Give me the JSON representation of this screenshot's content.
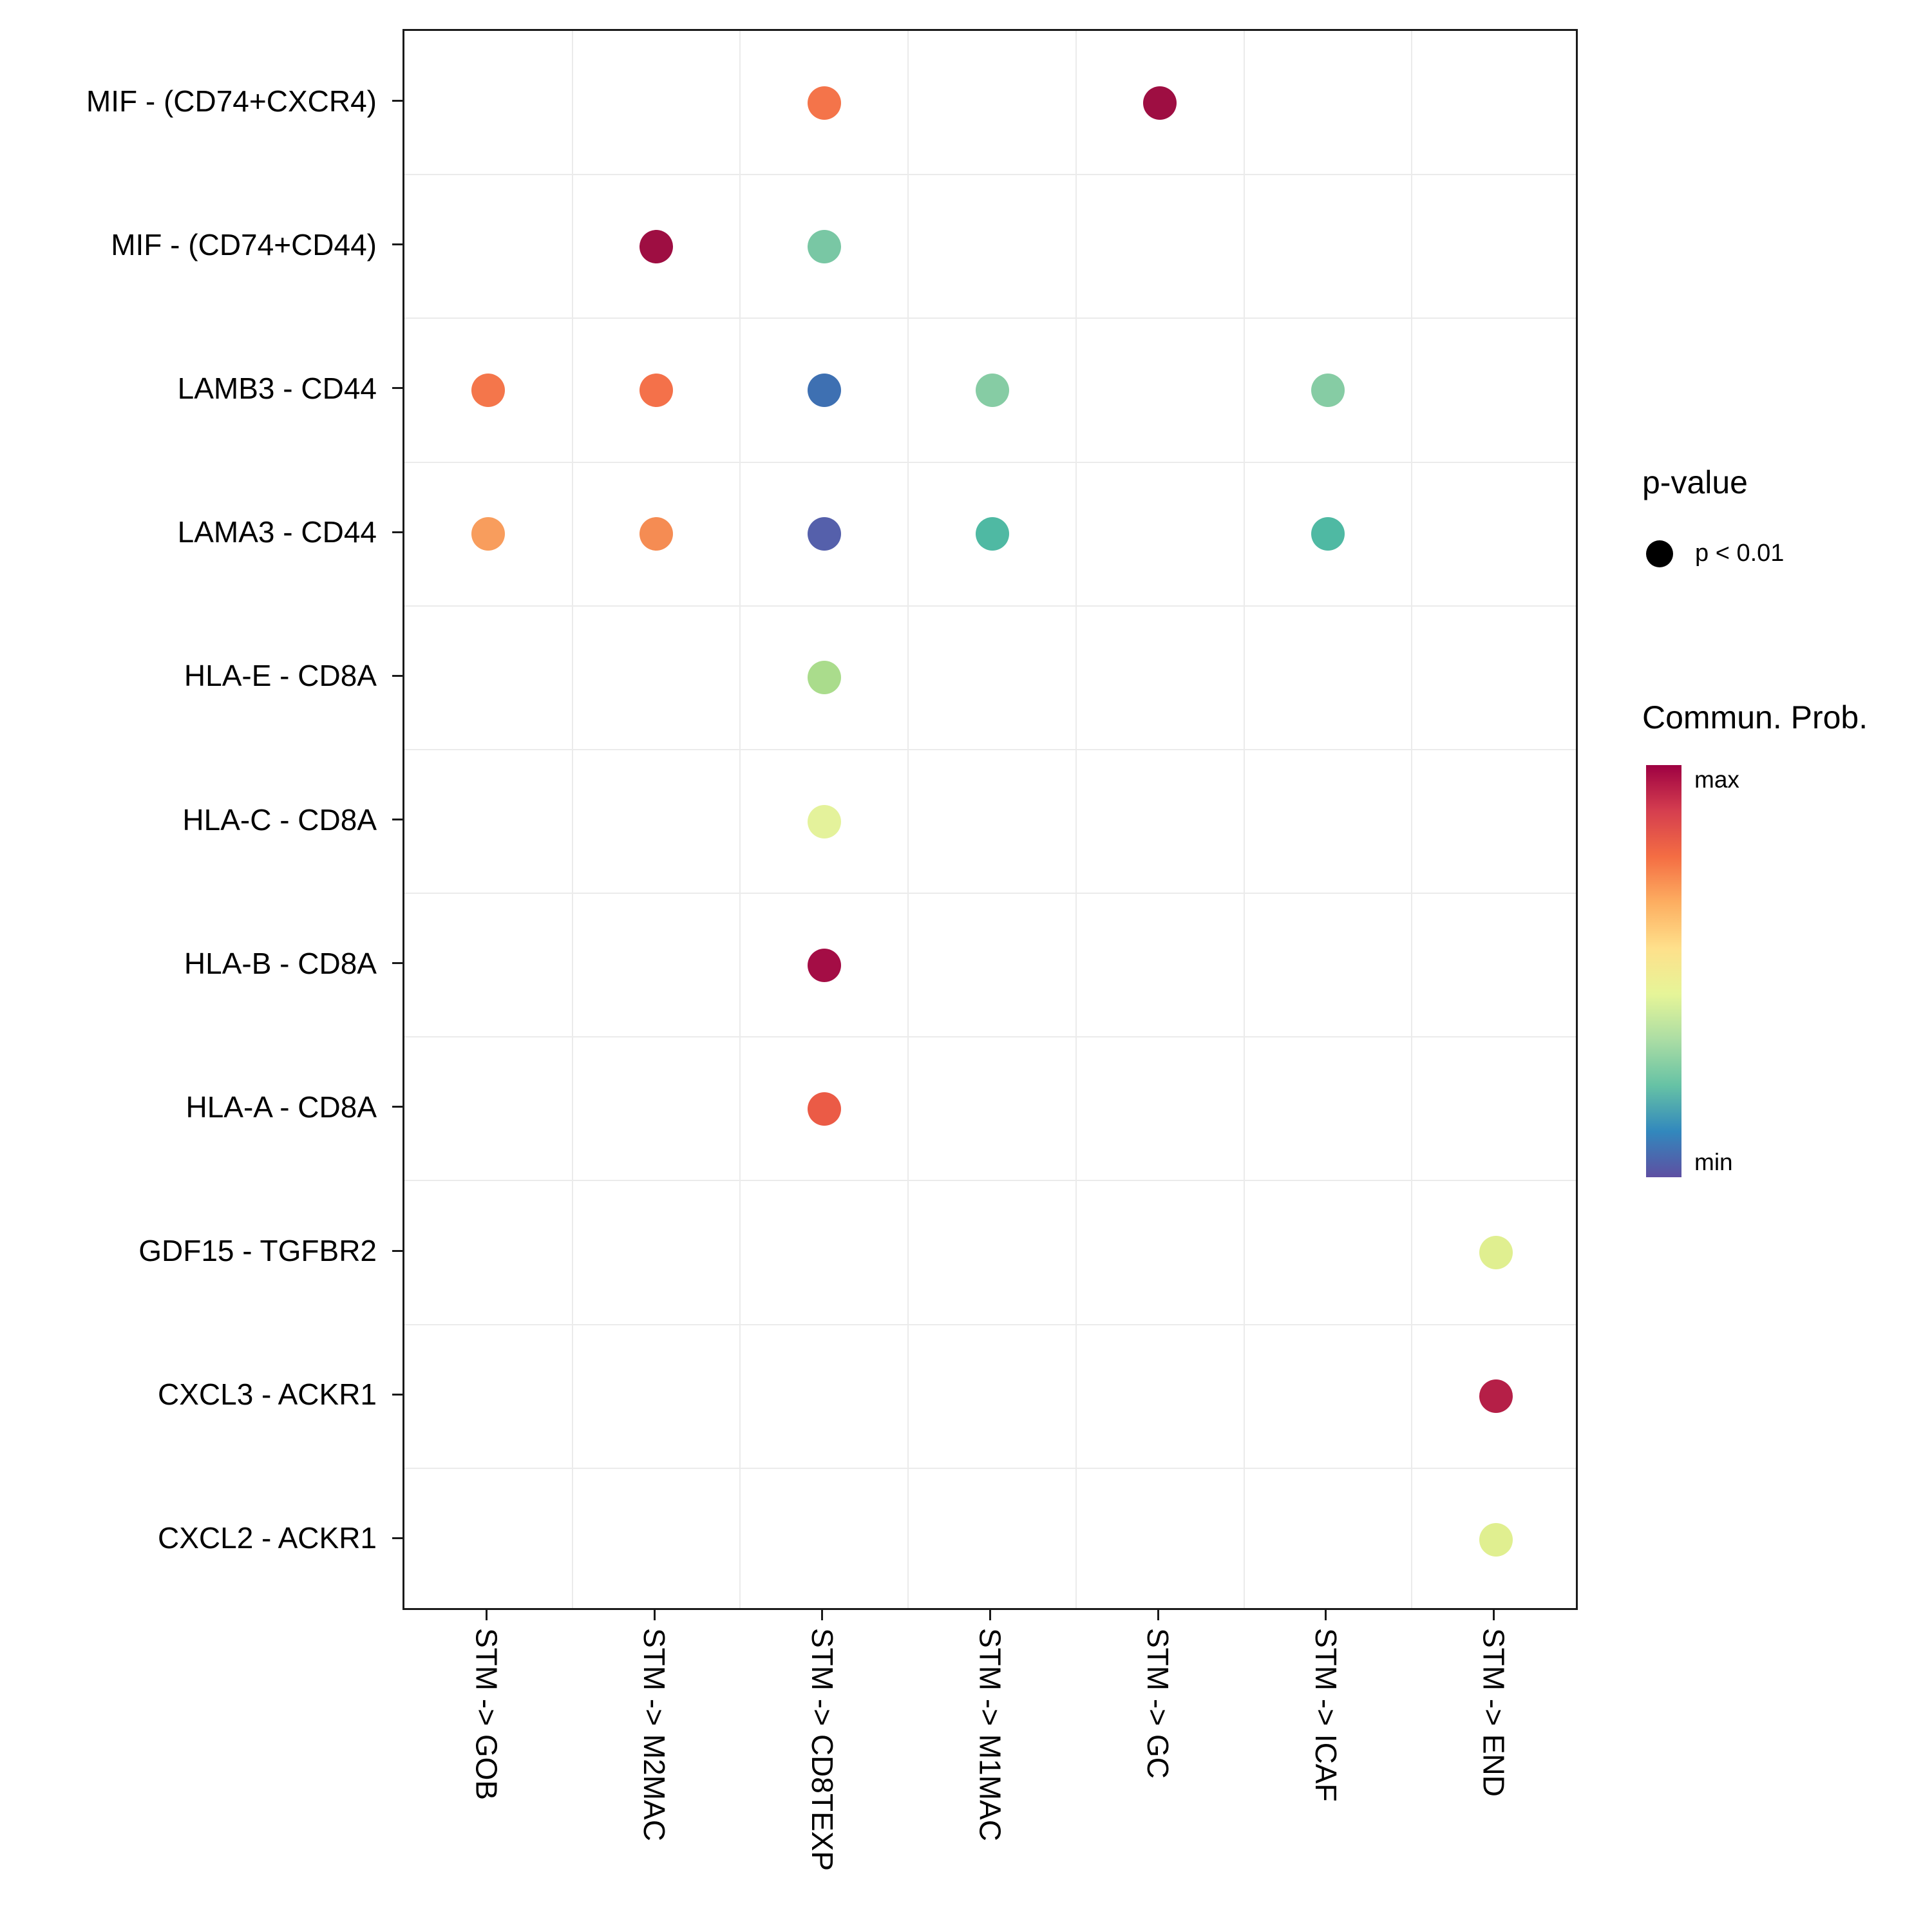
{
  "chart_data": {
    "type": "scatter",
    "subtype": "dot-plot-cell-communication",
    "title": "",
    "xlabel": "",
    "ylabel": "",
    "grid": "light-between-categories",
    "rows": [
      "MIF - (CD74+CXCR4)",
      "MIF - (CD74+CD44)",
      "LAMB3 - CD44",
      "LAMA3 - CD44",
      "HLA-E - CD8A",
      "HLA-C - CD8A",
      "HLA-B - CD8A",
      "HLA-A - CD8A",
      "GDF15 - TGFBR2",
      "CXCL3 - ACKR1",
      "CXCL2 - ACKR1"
    ],
    "columns": [
      "STM -> GOB",
      "STM -> M2MAC",
      "STM -> CD8TEXP",
      "STM -> M1MAC",
      "STM -> GC",
      "STM -> ICAF",
      "STM -> END"
    ],
    "points": [
      {
        "row": "MIF - (CD74+CXCR4)",
        "col": "STM -> CD8TEXP",
        "commun_prob_norm": 0.78,
        "pvalue": "p < 0.01",
        "color": "#F4744A"
      },
      {
        "row": "MIF - (CD74+CXCR4)",
        "col": "STM -> GC",
        "commun_prob_norm": 1.0,
        "pvalue": "p < 0.01",
        "color": "#9E0E42"
      },
      {
        "row": "MIF - (CD74+CD44)",
        "col": "STM -> M2MAC",
        "commun_prob_norm": 1.0,
        "pvalue": "p < 0.01",
        "color": "#9E0E42"
      },
      {
        "row": "MIF - (CD74+CD44)",
        "col": "STM -> CD8TEXP",
        "commun_prob_norm": 0.32,
        "pvalue": "p < 0.01",
        "color": "#79C7A4"
      },
      {
        "row": "LAMB3 - CD44",
        "col": "STM -> GOB",
        "commun_prob_norm": 0.78,
        "pvalue": "p < 0.01",
        "color": "#F4764B"
      },
      {
        "row": "LAMB3 - CD44",
        "col": "STM -> M2MAC",
        "commun_prob_norm": 0.78,
        "pvalue": "p < 0.01",
        "color": "#F4714A"
      },
      {
        "row": "LAMB3 - CD44",
        "col": "STM -> CD8TEXP",
        "commun_prob_norm": 0.11,
        "pvalue": "p < 0.01",
        "color": "#3E70B2"
      },
      {
        "row": "LAMB3 - CD44",
        "col": "STM -> M1MAC",
        "commun_prob_norm": 0.36,
        "pvalue": "p < 0.01",
        "color": "#86CCA4"
      },
      {
        "row": "LAMB3 - CD44",
        "col": "STM -> ICAF",
        "commun_prob_norm": 0.36,
        "pvalue": "p < 0.01",
        "color": "#86CCA4"
      },
      {
        "row": "LAMA3 - CD44",
        "col": "STM -> GOB",
        "commun_prob_norm": 0.72,
        "pvalue": "p < 0.01",
        "color": "#F89D5D"
      },
      {
        "row": "LAMA3 - CD44",
        "col": "STM -> M2MAC",
        "commun_prob_norm": 0.75,
        "pvalue": "p < 0.01",
        "color": "#F58C53"
      },
      {
        "row": "LAMA3 - CD44",
        "col": "STM -> CD8TEXP",
        "commun_prob_norm": 0.06,
        "pvalue": "p < 0.01",
        "color": "#5560AB"
      },
      {
        "row": "LAMA3 - CD44",
        "col": "STM -> M1MAC",
        "commun_prob_norm": 0.26,
        "pvalue": "p < 0.01",
        "color": "#4FB9A3"
      },
      {
        "row": "LAMA3 - CD44",
        "col": "STM -> ICAF",
        "commun_prob_norm": 0.26,
        "pvalue": "p < 0.01",
        "color": "#4FB9A3"
      },
      {
        "row": "HLA-E - CD8A",
        "col": "STM -> CD8TEXP",
        "commun_prob_norm": 0.42,
        "pvalue": "p < 0.01",
        "color": "#AADC8C"
      },
      {
        "row": "HLA-C - CD8A",
        "col": "STM -> CD8TEXP",
        "commun_prob_norm": 0.5,
        "pvalue": "p < 0.01",
        "color": "#E4F29B"
      },
      {
        "row": "HLA-B - CD8A",
        "col": "STM -> CD8TEXP",
        "commun_prob_norm": 0.98,
        "pvalue": "p < 0.01",
        "color": "#A40D45"
      },
      {
        "row": "HLA-A - CD8A",
        "col": "STM -> CD8TEXP",
        "commun_prob_norm": 0.84,
        "pvalue": "p < 0.01",
        "color": "#EB5B46"
      },
      {
        "row": "GDF15 - TGFBR2",
        "col": "STM -> END",
        "commun_prob_norm": 0.52,
        "pvalue": "p < 0.01",
        "color": "#E0EF90"
      },
      {
        "row": "CXCL3 - ACKR1",
        "col": "STM -> END",
        "commun_prob_norm": 0.96,
        "pvalue": "p < 0.01",
        "color": "#B51F47"
      },
      {
        "row": "CXCL2 - ACKR1",
        "col": "STM -> END",
        "commun_prob_norm": 0.52,
        "pvalue": "p < 0.01",
        "color": "#E0EF90"
      }
    ],
    "legends": {
      "pvalue": {
        "title": "p-value",
        "entries": [
          {
            "label": "p < 0.01",
            "dot_color": "#000000"
          }
        ]
      },
      "colorbar": {
        "title": "Commun. Prob.",
        "max_label": "max",
        "min_label": "min",
        "stops": [
          "#9E0142",
          "#D53E4F",
          "#F46D43",
          "#FDAE61",
          "#FEE08B",
          "#E6F598",
          "#ABDDA4",
          "#66C2A5",
          "#3288BD",
          "#5E4FA2"
        ]
      }
    },
    "layout_hints": {
      "panel_border": "#1a1a1a",
      "background": "#ffffff",
      "x_labels_rotated_90": true,
      "legend_position": "right"
    }
  }
}
